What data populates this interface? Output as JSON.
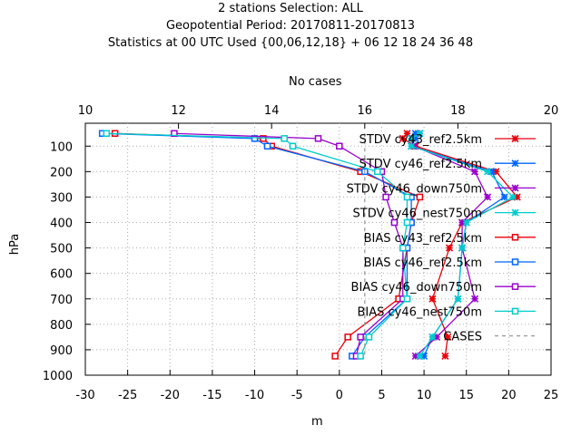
{
  "titles": [
    "2 stations Selection: ALL",
    "Geopotential  Period: 20170811-20170813",
    "Statistics at 00 UTC  Used {00,06,12,18} + 06 12 18 24 36 48"
  ],
  "chart_data": {
    "type": "line",
    "xlabel": "m",
    "ylabel": "hPa",
    "x2label": "No cases",
    "xlim": [
      -30,
      25
    ],
    "ylim": [
      1000,
      10
    ],
    "x2lim": [
      10,
      20
    ],
    "xticks": [
      -30,
      -25,
      -20,
      -15,
      -10,
      -5,
      0,
      5,
      10,
      15,
      20,
      25
    ],
    "yticks": [
      100,
      200,
      300,
      400,
      500,
      600,
      700,
      800,
      900,
      1000
    ],
    "x2ticks": [
      10,
      12,
      14,
      16,
      18,
      20
    ],
    "grid": true,
    "legend_position": "top-right",
    "series": [
      {
        "name": "STDV cy43_ref2.5km",
        "color": "#e8000b",
        "marker": "x",
        "line": "solid",
        "x": [
          8,
          7.5,
          9,
          18.5,
          21,
          14.5,
          13,
          11,
          12.8,
          12.5
        ],
        "y": [
          50,
          70,
          100,
          200,
          300,
          400,
          500,
          700,
          850,
          925
        ]
      },
      {
        "name": "STDV cy46_ref2.5km",
        "color": "#0066ff",
        "marker": "x",
        "line": "solid",
        "x": [
          9,
          9,
          8.5,
          18,
          19.5,
          15,
          14.5,
          14,
          11,
          10
        ],
        "y": [
          50,
          70,
          100,
          200,
          300,
          400,
          500,
          700,
          850,
          925
        ]
      },
      {
        "name": "STDV cy46_down750m",
        "color": "#9900cc",
        "marker": "x",
        "line": "solid",
        "x": [
          9.5,
          8.5,
          8.8,
          16,
          17.5,
          14.5,
          14.5,
          16,
          11.5,
          9
        ],
        "y": [
          50,
          70,
          100,
          200,
          300,
          400,
          500,
          700,
          850,
          925
        ]
      },
      {
        "name": "STDV cy46_nest750m",
        "color": "#00cccc",
        "marker": "x",
        "line": "solid",
        "x": [
          9.5,
          8.5,
          8.5,
          17.5,
          20.5,
          15,
          14.5,
          14,
          11,
          9.5
        ],
        "y": [
          50,
          70,
          100,
          200,
          300,
          400,
          500,
          700,
          850,
          925
        ]
      },
      {
        "name": "BIAS cy43_ref2.5km",
        "color": "#e8000b",
        "marker": "square",
        "line": "solid",
        "x": [
          -26.5,
          -9,
          -8,
          2.5,
          9.5,
          8.5,
          8,
          7,
          1,
          -0.5
        ],
        "y": [
          50,
          70,
          100,
          200,
          300,
          400,
          500,
          700,
          850,
          925
        ]
      },
      {
        "name": "BIAS cy46_ref2.5km",
        "color": "#0066ff",
        "marker": "square",
        "line": "solid",
        "x": [
          -28,
          -10,
          -8.5,
          3,
          8.5,
          8.5,
          8,
          8,
          3,
          1.5
        ],
        "y": [
          50,
          70,
          100,
          200,
          300,
          400,
          500,
          700,
          850,
          925
        ]
      },
      {
        "name": "BIAS cy46_down750m",
        "color": "#9900cc",
        "marker": "square",
        "line": "solid",
        "x": [
          -19.5,
          -2.5,
          0,
          5,
          5.5,
          6.5,
          7.5,
          7.5,
          2.5,
          2
        ],
        "y": [
          50,
          70,
          100,
          200,
          300,
          400,
          500,
          700,
          850,
          925
        ]
      },
      {
        "name": "BIAS cy46_nest750m",
        "color": "#00cccc",
        "marker": "square",
        "line": "solid",
        "x": [
          -27.5,
          -6.5,
          -5.5,
          4.5,
          8,
          8,
          7.5,
          8,
          3.5,
          2.5
        ],
        "y": [
          50,
          70,
          100,
          200,
          300,
          400,
          500,
          700,
          850,
          925
        ]
      },
      {
        "name": "CASES",
        "color": "#999999",
        "marker": "none",
        "line": "dashed",
        "x2": [
          16,
          16,
          16,
          16,
          16,
          16,
          16,
          16,
          16,
          16
        ],
        "y": [
          50,
          70,
          100,
          200,
          300,
          400,
          500,
          700,
          850,
          925
        ]
      }
    ]
  }
}
